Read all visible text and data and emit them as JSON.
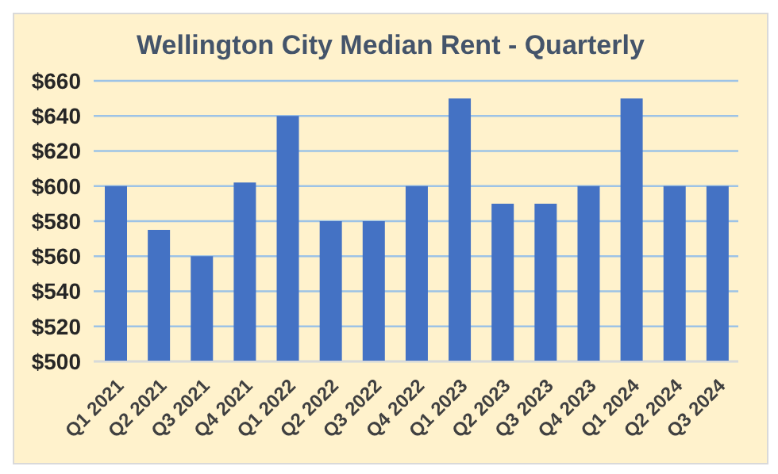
{
  "chart_data": {
    "type": "bar",
    "title": "Wellington City Median Rent - Quarterly",
    "categories": [
      "Q1 2021",
      "Q2 2021",
      "Q3 2021",
      "Q4 2021",
      "Q1 2022",
      "Q2 2022",
      "Q3 2022",
      "Q4 2022",
      "Q1 2023",
      "Q2 2023",
      "Q3 2023",
      "Q4 2023",
      "Q1 2024",
      "Q2 2024",
      "Q3 2024"
    ],
    "values": [
      600,
      575,
      560,
      602,
      640,
      580,
      580,
      600,
      650,
      590,
      590,
      600,
      650,
      600,
      600
    ],
    "color": "#4472c4",
    "ylim": [
      500,
      660
    ],
    "yticks": [
      {
        "value": 500,
        "label": "$500"
      },
      {
        "value": 520,
        "label": "$520"
      },
      {
        "value": 540,
        "label": "$540"
      },
      {
        "value": 560,
        "label": "$560"
      },
      {
        "value": 580,
        "label": "$580"
      },
      {
        "value": 600,
        "label": "$600"
      },
      {
        "value": 620,
        "label": "$620"
      },
      {
        "value": 640,
        "label": "$640"
      },
      {
        "value": 660,
        "label": "$660"
      }
    ],
    "grid": "y"
  }
}
